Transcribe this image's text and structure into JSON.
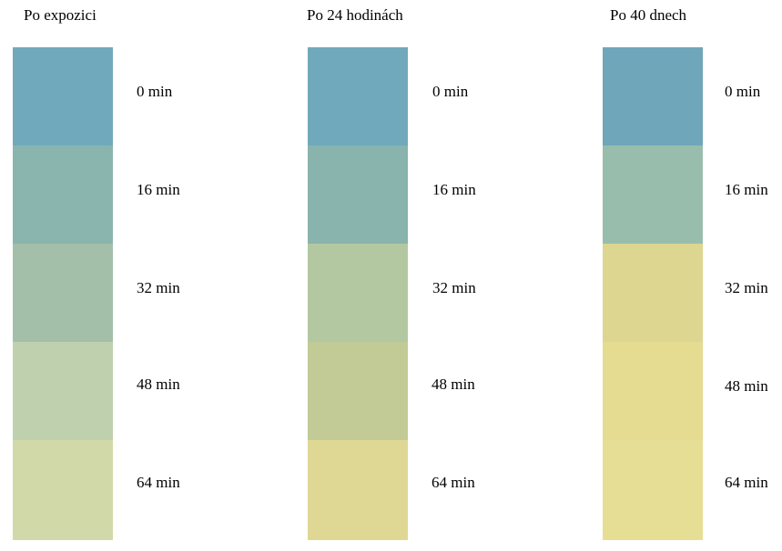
{
  "columns": [
    {
      "title": "Po expozici",
      "rows": [
        {
          "label": "0 min",
          "color": "#70a9bb"
        },
        {
          "label": "16 min",
          "color": "#8ab4ae"
        },
        {
          "label": "32 min",
          "color": "#a3bfaa"
        },
        {
          "label": "48 min",
          "color": "#bfd0af"
        },
        {
          "label": "64 min",
          "color": "#d2d9a9"
        }
      ]
    },
    {
      "title": "Po 24 hodinách",
      "rows": [
        {
          "label": "0 min",
          "color": "#70a9bb"
        },
        {
          "label": "16 min",
          "color": "#89b3ad"
        },
        {
          "label": "32 min",
          "color": "#b3c8a0"
        },
        {
          "label": "48 min",
          "color": "#c2ca96"
        },
        {
          "label": "64 min",
          "color": "#dfd895"
        }
      ]
    },
    {
      "title": "Po 40 dnech",
      "rows": [
        {
          "label": "0 min",
          "color": "#70a6ba"
        },
        {
          "label": "16 min",
          "color": "#99bdad"
        },
        {
          "label": "32 min",
          "color": "#dcd690"
        },
        {
          "label": "48 min",
          "color": "#e5db91"
        },
        {
          "label": "64 min",
          "color": "#e7de96"
        }
      ]
    }
  ]
}
